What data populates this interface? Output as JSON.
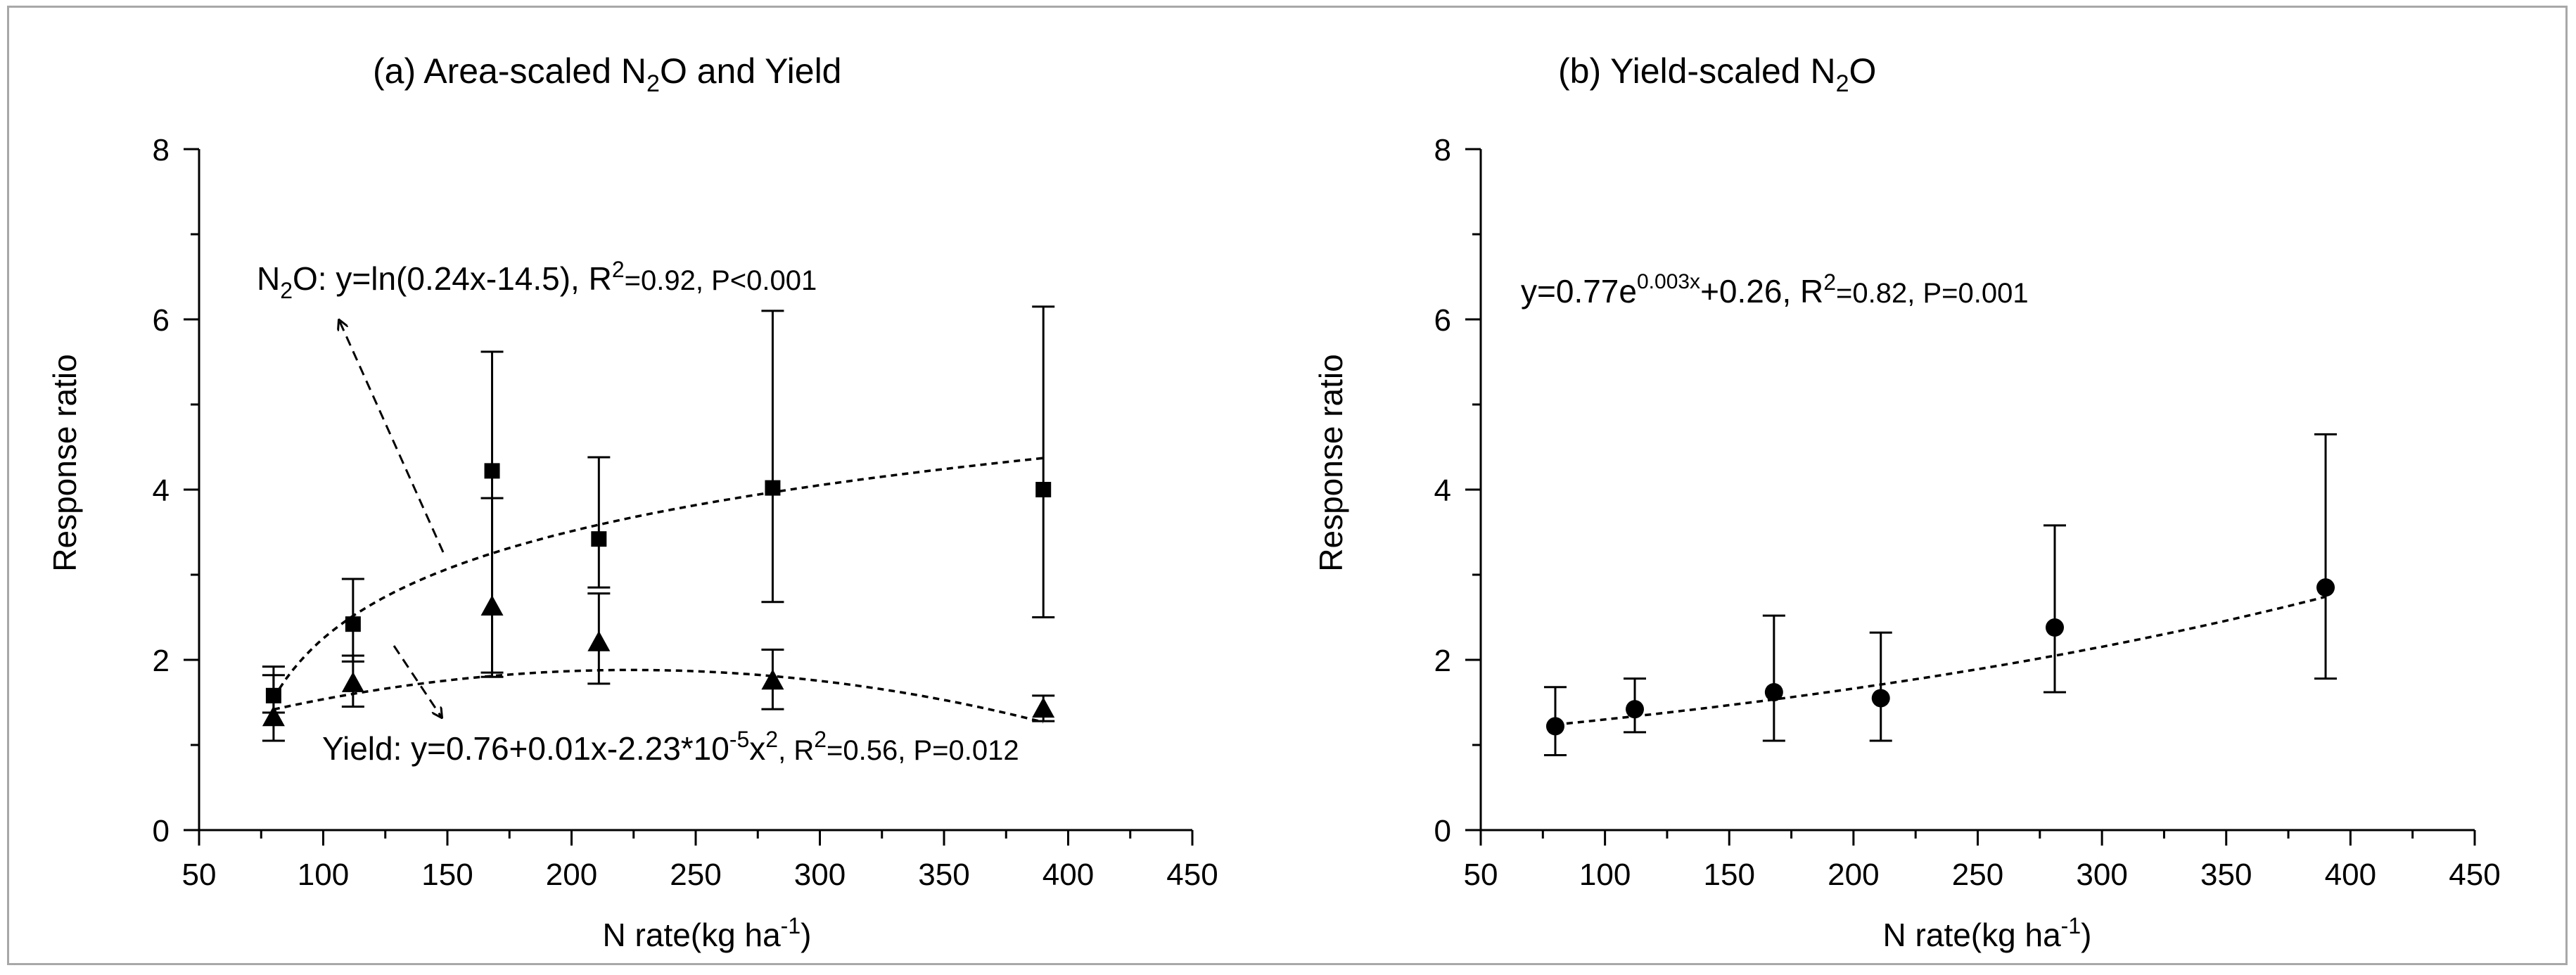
{
  "chart_data": [
    {
      "type": "scatter",
      "panel": "a",
      "title": "(a) Area-scaled N₂O and Yield",
      "title_parts": {
        "prefix": "(a) Area-scaled N",
        "sub": "2",
        "suffix": "O and Yield"
      },
      "xlabel": "N rate(kg ha⁻¹)",
      "xlabel_parts": {
        "base": "N rate(kg ha",
        "sup": "-1",
        "end": ")"
      },
      "ylabel": "Response ratio",
      "xlim": [
        50,
        450
      ],
      "ylim": [
        0,
        8
      ],
      "xticks": [
        50,
        100,
        150,
        200,
        250,
        300,
        350,
        400,
        450
      ],
      "yticks": [
        0,
        2,
        4,
        6,
        8
      ],
      "series": [
        {
          "name": "N2O",
          "marker": "square",
          "x": [
            80,
            112,
            168,
            211,
            281,
            390
          ],
          "y": [
            1.58,
            2.42,
            4.22,
            3.42,
            4.02,
            4.0
          ],
          "err_low": [
            1.38,
            1.98,
            1.8,
            2.85,
            2.68,
            2.5
          ],
          "err_high": [
            1.82,
            2.95,
            5.62,
            4.38,
            6.1,
            6.15
          ],
          "fit": {
            "type": "log",
            "a": 0.24,
            "b": -14.5,
            "x_range": [
              80,
              390
            ]
          }
        },
        {
          "name": "Yield",
          "marker": "triangle",
          "x": [
            80,
            112,
            168,
            211,
            281,
            390
          ],
          "y": [
            1.32,
            1.72,
            2.62,
            2.2,
            1.75,
            1.42
          ],
          "err_low": [
            1.05,
            1.45,
            1.85,
            1.72,
            1.42,
            1.28
          ],
          "err_high": [
            1.92,
            2.05,
            3.9,
            2.78,
            2.12,
            1.58
          ],
          "fit": {
            "type": "quad",
            "c0": 0.76,
            "c1": 0.01,
            "c2": -2.23e-05,
            "x_range": [
              80,
              390
            ]
          }
        }
      ],
      "annotations": [
        {
          "id": "n2o_eq",
          "parts": [
            "N",
            "2",
            "O: y=ln(0.24x-14.5), R",
            "2",
            "=0.92, P<0.001"
          ]
        },
        {
          "id": "yield_eq",
          "parts": [
            "Yield: y=0.76+0.01x-2.23*10",
            "-5",
            "x",
            "2",
            ", R",
            "2",
            "=0.56, P=0.012"
          ]
        }
      ]
    },
    {
      "type": "scatter",
      "panel": "b",
      "title": "(b) Yield-scaled N₂O",
      "title_parts": {
        "prefix": "(b) Yield-scaled N",
        "sub": "2",
        "suffix": "O"
      },
      "xlabel": "N rate(kg ha⁻¹)",
      "xlabel_parts": {
        "base": "N rate(kg ha",
        "sup": "-1",
        "end": ")"
      },
      "ylabel": "Response ratio",
      "xlim": [
        50,
        450
      ],
      "ylim": [
        0,
        8
      ],
      "xticks": [
        50,
        100,
        150,
        200,
        250,
        300,
        350,
        400,
        450
      ],
      "yticks": [
        0,
        2,
        4,
        6,
        8
      ],
      "series": [
        {
          "name": "Yield-scaled N2O",
          "marker": "circle",
          "x": [
            80,
            112,
            168,
            211,
            281,
            390
          ],
          "y": [
            1.22,
            1.42,
            1.62,
            1.55,
            2.38,
            2.85
          ],
          "err_low": [
            0.88,
            1.15,
            1.05,
            1.05,
            1.62,
            1.78
          ],
          "err_high": [
            1.68,
            1.78,
            2.52,
            2.32,
            3.58,
            4.65
          ],
          "fit": {
            "type": "exp",
            "a": 0.77,
            "k": 0.003,
            "c": 0.26,
            "x_range": [
              80,
              390
            ]
          }
        }
      ],
      "annotations": [
        {
          "id": "exp_eq",
          "parts": [
            "y=0.77e",
            "0.003x",
            "+0.26, R",
            "2",
            "=0.82, P=0.001"
          ]
        }
      ]
    }
  ]
}
